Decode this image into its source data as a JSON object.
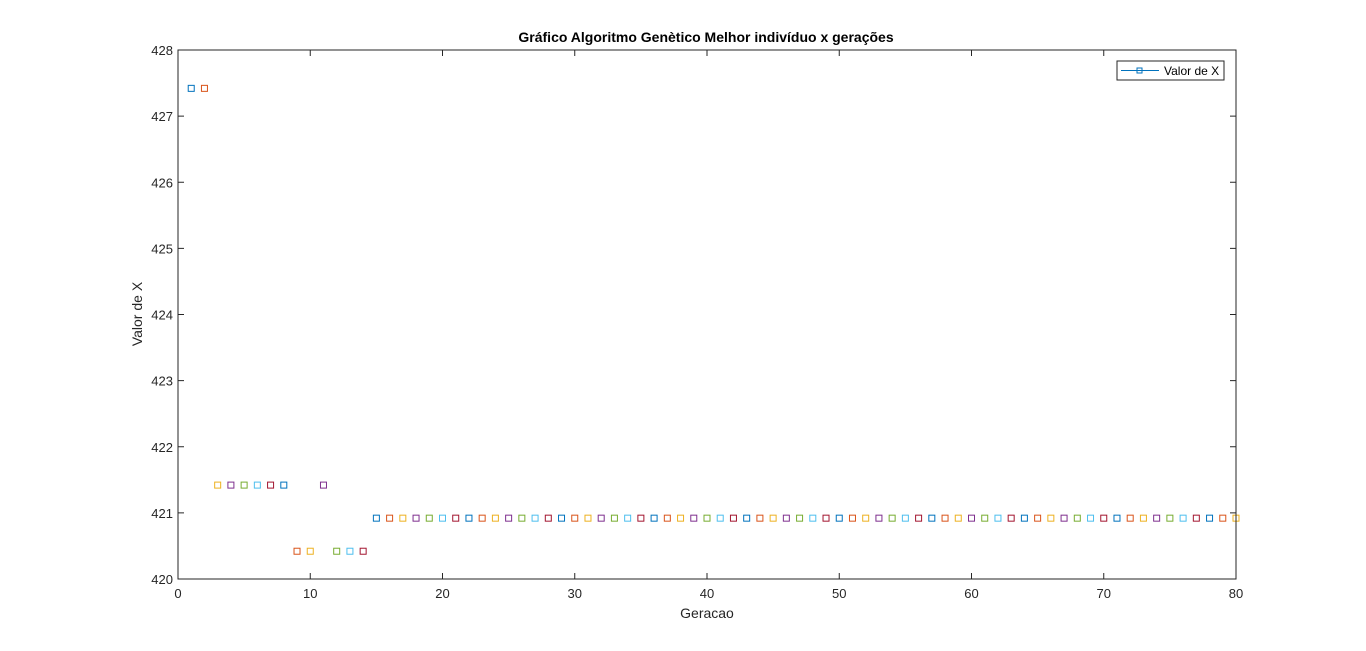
{
  "chart_data": {
    "type": "scatter",
    "title": "Gráfico Algoritmo Genètico Melhor indivíduo x gerações",
    "xlabel": "Geracao",
    "ylabel": "Valor de X",
    "xlim": [
      0,
      80
    ],
    "ylim": [
      420,
      428
    ],
    "xticks": [
      0,
      10,
      20,
      30,
      40,
      50,
      60,
      70,
      80
    ],
    "yticks": [
      420,
      421,
      422,
      423,
      424,
      425,
      426,
      427,
      428
    ],
    "xtick_labels": [
      "0",
      "10",
      "20",
      "30",
      "40",
      "50",
      "60",
      "70",
      "80"
    ],
    "ytick_labels": [
      "420",
      "421",
      "422",
      "423",
      "424",
      "425",
      "426",
      "427",
      "428"
    ],
    "grid": false,
    "legend": {
      "position": "top-right",
      "entries": [
        "Valor de X"
      ]
    },
    "marker": "square",
    "colors": [
      "#0072BD",
      "#D95319",
      "#EDB120",
      "#7E2F8E",
      "#77AC30",
      "#4DBEEE",
      "#A2142F"
    ],
    "x": [
      1,
      2,
      3,
      4,
      5,
      6,
      7,
      8,
      9,
      10,
      11,
      12,
      13,
      14,
      15,
      16,
      17,
      18,
      19,
      20,
      21,
      22,
      23,
      24,
      25,
      26,
      27,
      28,
      29,
      30,
      31,
      32,
      33,
      34,
      35,
      36,
      37,
      38,
      39,
      40,
      41,
      42,
      43,
      44,
      45,
      46,
      47,
      48,
      49,
      50,
      51,
      52,
      53,
      54,
      55,
      56,
      57,
      58,
      59,
      60,
      61,
      62,
      63,
      64,
      65,
      66,
      67,
      68,
      69,
      70,
      71,
      72,
      73,
      74,
      75,
      76,
      77,
      78,
      79,
      80
    ],
    "y": [
      427.42,
      427.42,
      421.42,
      421.42,
      421.42,
      421.42,
      421.42,
      421.42,
      420.42,
      420.42,
      421.42,
      420.42,
      420.42,
      420.42,
      420.92,
      420.92,
      420.92,
      420.92,
      420.92,
      420.92,
      420.92,
      420.92,
      420.92,
      420.92,
      420.92,
      420.92,
      420.92,
      420.92,
      420.92,
      420.92,
      420.92,
      420.92,
      420.92,
      420.92,
      420.92,
      420.92,
      420.92,
      420.92,
      420.92,
      420.92,
      420.92,
      420.92,
      420.92,
      420.92,
      420.92,
      420.92,
      420.92,
      420.92,
      420.92,
      420.92,
      420.92,
      420.92,
      420.92,
      420.92,
      420.92,
      420.92,
      420.92,
      420.92,
      420.92,
      420.92,
      420.92,
      420.92,
      420.92,
      420.92,
      420.92,
      420.92,
      420.92,
      420.92,
      420.92,
      420.92,
      420.92,
      420.92,
      420.92,
      420.92,
      420.92,
      420.92,
      420.92,
      420.92,
      420.92,
      420.92
    ]
  }
}
